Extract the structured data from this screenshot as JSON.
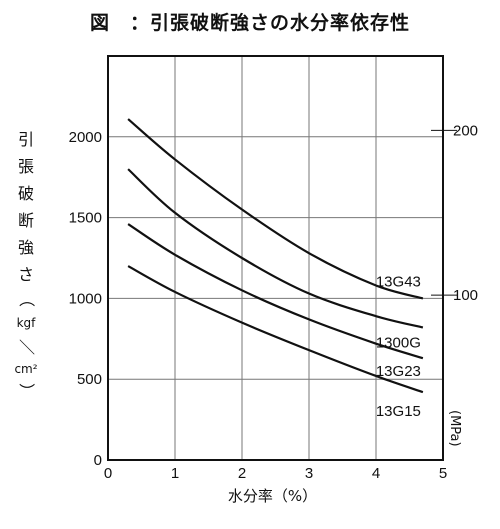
{
  "chart_data": {
    "type": "line",
    "title": "図　：引張破断強さの水分率依存性",
    "xlabel": "水分率（%）",
    "ylabel": "引張破断強さ（kgf／cm²）",
    "ylabel_chars": [
      "引",
      "張",
      "破",
      "断",
      "強",
      "さ"
    ],
    "ylabel_unit_parts": [
      "（",
      "kgf",
      "／",
      "cm²",
      "）"
    ],
    "y2label": "(MPa)",
    "xlim": [
      0,
      5
    ],
    "ylim": [
      0,
      2500
    ],
    "x_ticks": [
      0,
      1,
      2,
      3,
      4,
      5
    ],
    "y_ticks": [
      0,
      500,
      1000,
      1500,
      2000
    ],
    "y2_ticks": [
      {
        "label": "100",
        "value": 1020
      },
      {
        "label": "200",
        "value": 2040
      }
    ],
    "grid": true,
    "series": [
      {
        "name": "13G43",
        "points": [
          [
            0.3,
            2110
          ],
          [
            1,
            1860
          ],
          [
            2,
            1550
          ],
          [
            3,
            1280
          ],
          [
            4,
            1080
          ],
          [
            4.7,
            1000
          ]
        ]
      },
      {
        "name": "1300G",
        "points": [
          [
            0.3,
            1800
          ],
          [
            1,
            1530
          ],
          [
            2,
            1250
          ],
          [
            3,
            1030
          ],
          [
            4,
            890
          ],
          [
            4.7,
            820
          ]
        ]
      },
      {
        "name": "13G23",
        "points": [
          [
            0.3,
            1460
          ],
          [
            1,
            1270
          ],
          [
            2,
            1050
          ],
          [
            3,
            870
          ],
          [
            4,
            720
          ],
          [
            4.7,
            630
          ]
        ]
      },
      {
        "name": "13G15",
        "points": [
          [
            0.3,
            1200
          ],
          [
            1,
            1040
          ],
          [
            2,
            850
          ],
          [
            3,
            680
          ],
          [
            4,
            520
          ],
          [
            4.7,
            420
          ]
        ]
      }
    ]
  }
}
